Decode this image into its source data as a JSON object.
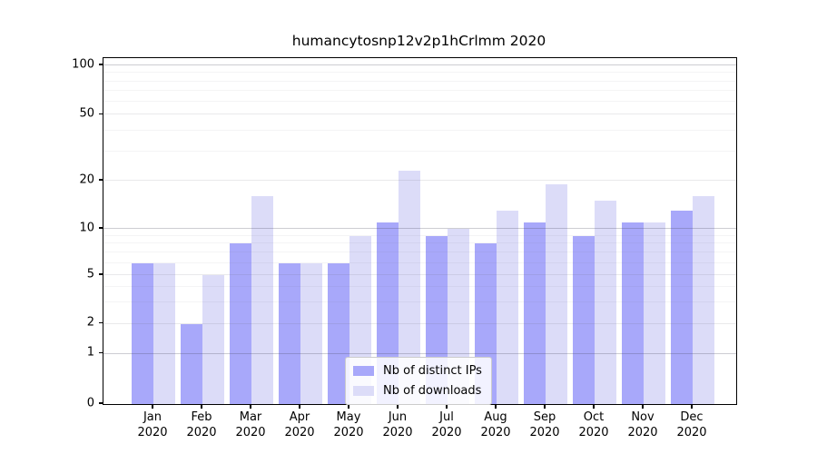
{
  "chart_data": {
    "type": "bar",
    "title": "humancytosnp12v2p1hCrlmm 2020",
    "categories": [
      "Jan",
      "Feb",
      "Mar",
      "Apr",
      "May",
      "Jun",
      "Jul",
      "Aug",
      "Sep",
      "Oct",
      "Nov",
      "Dec"
    ],
    "category_year": "2020",
    "series": [
      {
        "name": "Nb of distinct IPs",
        "color": "#a8a8fa",
        "values": [
          6,
          2,
          8,
          6,
          6,
          11,
          9,
          8,
          11,
          9,
          11,
          13
        ]
      },
      {
        "name": "Nb of downloads",
        "color": "#dcdcf8",
        "values": [
          6,
          5,
          16,
          6,
          9,
          23,
          10,
          13,
          19,
          15,
          11,
          16
        ]
      }
    ],
    "ylabel": "",
    "xlabel": "",
    "yticks": [
      0,
      1,
      2,
      5,
      10,
      20,
      50,
      100
    ],
    "ylim": [
      0,
      110
    ],
    "yscale": "symlog-like",
    "scale_anchors": [
      {
        "v": 0,
        "f": 0.0
      },
      {
        "v": 1,
        "f": 0.1457
      },
      {
        "v": 2,
        "f": 0.2323
      },
      {
        "v": 5,
        "f": 0.3727
      },
      {
        "v": 10,
        "f": 0.5066
      },
      {
        "v": 20,
        "f": 0.6457
      },
      {
        "v": 50,
        "f": 0.836
      },
      {
        "v": 100,
        "f": 0.979
      }
    ],
    "minor_grid_values": [
      3,
      4,
      6,
      7,
      8,
      9,
      30,
      40,
      60,
      70,
      80,
      90
    ],
    "decade_grid_values": [
      1,
      10,
      100
    ],
    "grid": true,
    "legend_position": "lower center",
    "axis_color": "#000000",
    "background_color": "#ffffff"
  }
}
